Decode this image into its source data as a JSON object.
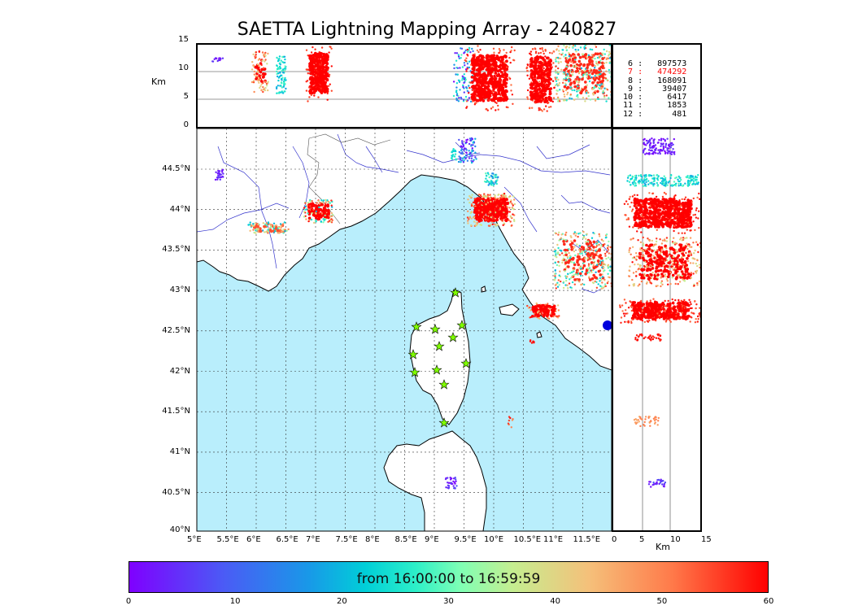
{
  "title": "SAETTA Lightning Mapping Array - 240827",
  "top_panel": {
    "ylabel": "Km",
    "yticks": [
      "15",
      "10",
      "5",
      "0"
    ]
  },
  "right_panel": {
    "xlabel": "Km",
    "xticks": [
      "0",
      "5",
      "10",
      "15"
    ]
  },
  "map": {
    "lon_ticks": [
      "5°E",
      "5.5°E",
      "6°E",
      "6.5°E",
      "7°E",
      "7.5°E",
      "8°E",
      "8.5°E",
      "9°E",
      "9.5°E",
      "10°E",
      "10.5°E",
      "11°E",
      "11.5°E"
    ],
    "lat_ticks": [
      "44.5°N",
      "44°N",
      "43.5°N",
      "43°N",
      "42.5°N",
      "42°N",
      "41.5°N",
      "41°N",
      "40.5°N",
      "40°N"
    ],
    "sea_color": "#b9eefc",
    "land_color": "#ffffff",
    "river_color": "#3333cc",
    "station_icon": "star-icon",
    "station_color": "#7fff00"
  },
  "stats": [
    {
      "level": "6",
      "sep": ":",
      "count": "897573",
      "highlight": false
    },
    {
      "level": "7",
      "sep": ":",
      "count": "474292",
      "highlight": true
    },
    {
      "level": "8",
      "sep": ":",
      "count": "168091",
      "highlight": false
    },
    {
      "level": "9",
      "sep": ":",
      "count": "39407",
      "highlight": false
    },
    {
      "level": "10",
      "sep": ":",
      "count": "6417",
      "highlight": false
    },
    {
      "level": "11",
      "sep": ":",
      "count": "1853",
      "highlight": false
    },
    {
      "level": "12",
      "sep": ":",
      "count": "481",
      "highlight": false
    }
  ],
  "colorbar": {
    "label": "from 16:00:00 to 16:59:59",
    "ticks": [
      "0",
      "10",
      "20",
      "30",
      "40",
      "50",
      "60"
    ],
    "range": [
      0,
      60
    ]
  }
}
